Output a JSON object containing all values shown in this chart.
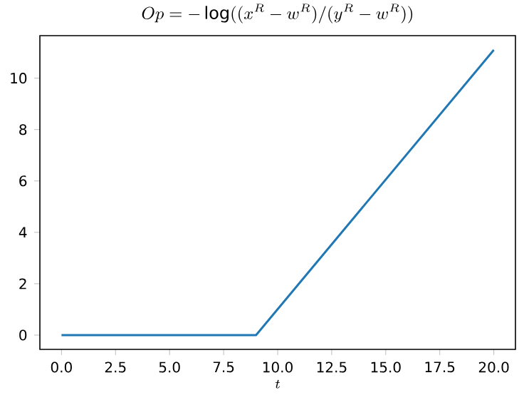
{
  "chart_data": {
    "type": "line",
    "title": "Op = -\\log((x^R - w^R)/(y^R - w^R))",
    "xlabel": "t",
    "x": [
      0,
      9,
      20
    ],
    "series": [
      {
        "color": "#1f77b4",
        "values": [
          0,
          0,
          11.1
        ]
      }
    ],
    "xlim": [
      -1,
      21
    ],
    "ylim": [
      -0.555,
      11.655
    ],
    "xticks": [
      {
        "value": 0,
        "label": "0.0"
      },
      {
        "value": 2.5,
        "label": "2.5"
      },
      {
        "value": 5,
        "label": "5.0"
      },
      {
        "value": 7.5,
        "label": "7.5"
      },
      {
        "value": 10,
        "label": "10.0"
      },
      {
        "value": 12.5,
        "label": "12.5"
      },
      {
        "value": 15,
        "label": "15.0"
      },
      {
        "value": 17.5,
        "label": "17.5"
      },
      {
        "value": 20,
        "label": "20.0"
      }
    ],
    "yticks": [
      0,
      2,
      4,
      6,
      8,
      10
    ],
    "grid": false,
    "line_style": "solid"
  }
}
